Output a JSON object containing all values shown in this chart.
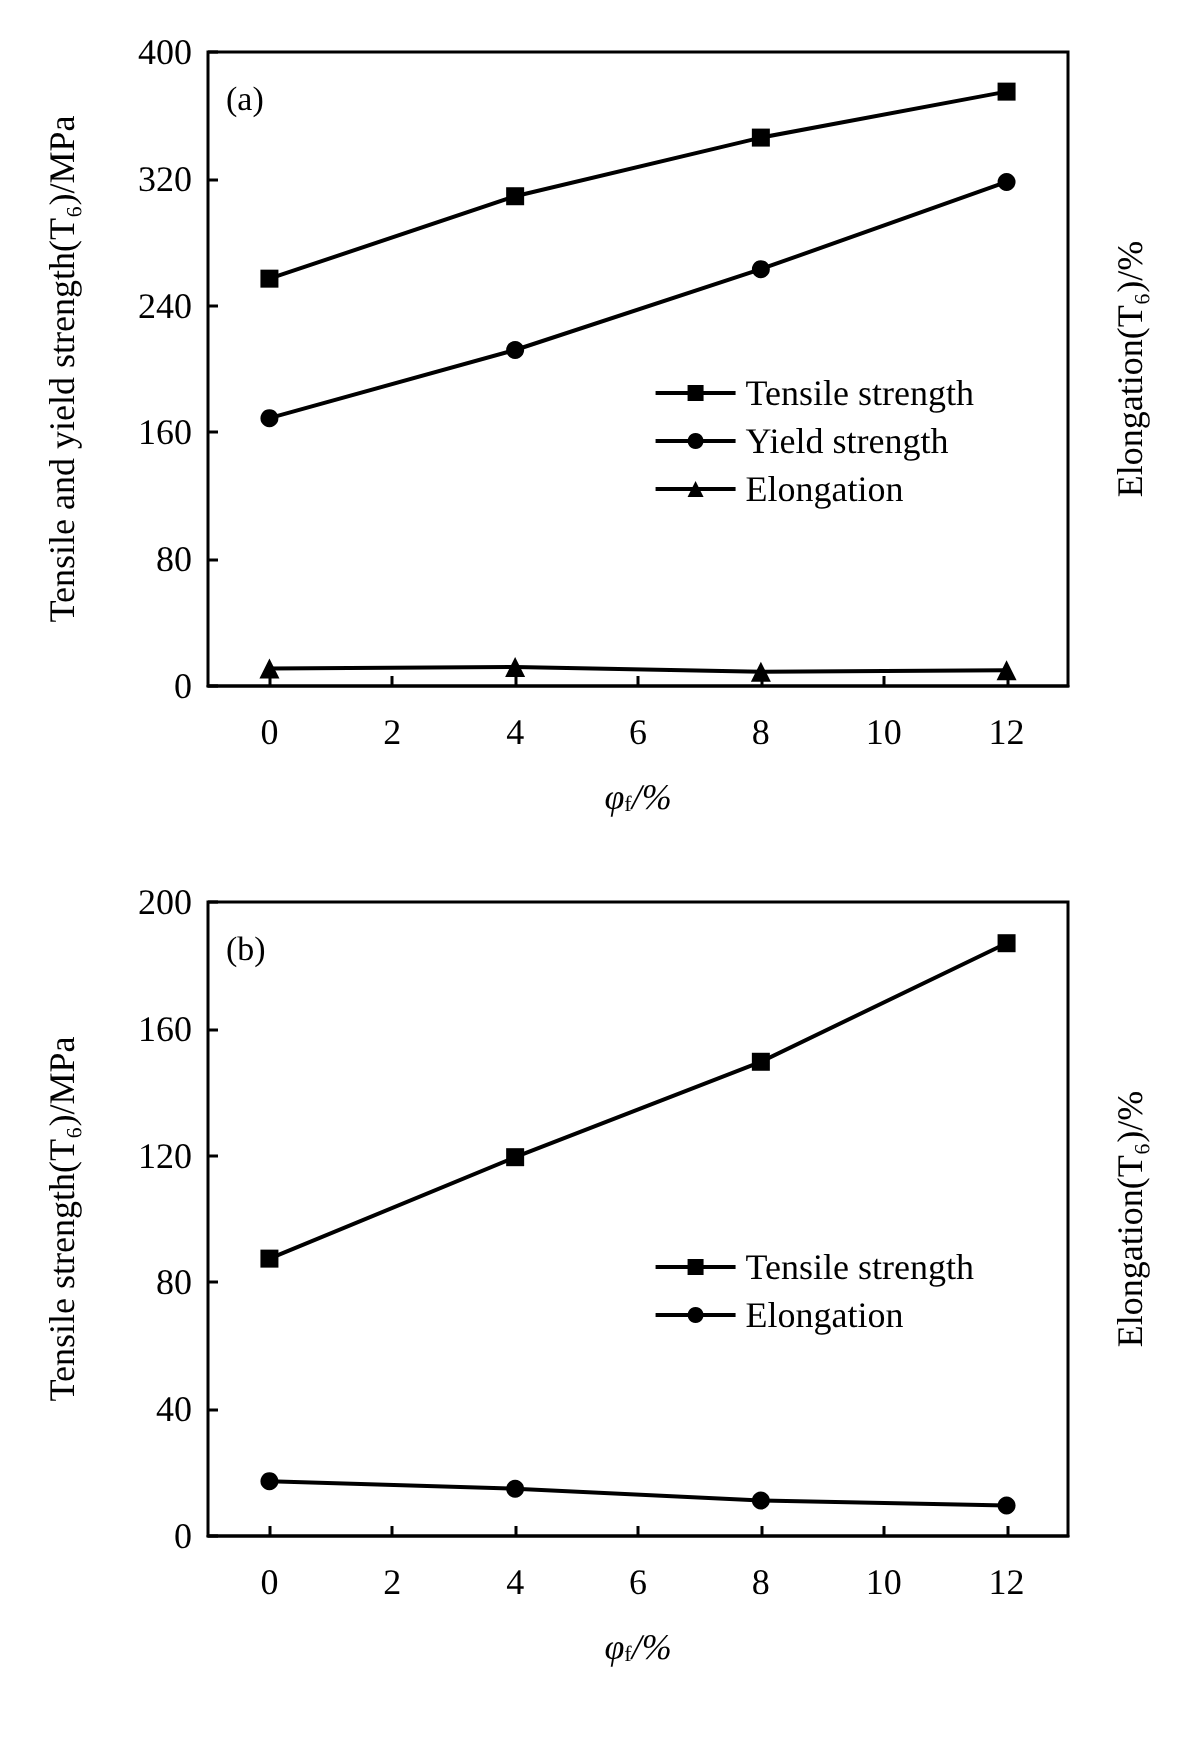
{
  "chart_data": [
    {
      "type": "line",
      "title": "(a)",
      "xlabel": "φ$_{f}$/%",
      "ylabel": "Tensile and yield strength(T₆)/MPa",
      "y2label": "Elongation(T₆)/%",
      "x": [
        0,
        4,
        8,
        12
      ],
      "xlim": [
        -1,
        13
      ],
      "xticks": [
        0,
        2,
        4,
        6,
        8,
        10,
        12
      ],
      "ylim": [
        0,
        400
      ],
      "yticks": [
        0,
        80,
        160,
        240,
        320,
        400
      ],
      "grid": false,
      "legend": "right",
      "line_style": "solid",
      "series": [
        {
          "name": "Tensile strength",
          "color": "#000000",
          "marker": "square",
          "values": [
            257,
            309,
            346,
            375
          ]
        },
        {
          "name": "Yield strength",
          "color": "#000000",
          "marker": "circle",
          "values": [
            169,
            212,
            263,
            318
          ]
        },
        {
          "name": "Elongation",
          "color": "#000000",
          "marker": "triangle",
          "values": [
            11,
            12,
            9,
            10
          ]
        }
      ]
    },
    {
      "type": "line",
      "title": "(b)",
      "xlabel": "φ$_{f}$/%",
      "ylabel": "Tensile strength(T₆)/MPa",
      "y2label": "Elongation(T₆)/%",
      "x": [
        0,
        4,
        8,
        12
      ],
      "xlim": [
        -1,
        13
      ],
      "xticks": [
        0,
        2,
        4,
        6,
        8,
        10,
        12
      ],
      "ylim": [
        0,
        200
      ],
      "yticks": [
        0,
        40,
        80,
        120,
        160,
        200
      ],
      "grid": false,
      "legend": "right",
      "line_style": "solid",
      "series": [
        {
          "name": "Tensile strength",
          "color": "#000000",
          "marker": "square",
          "values": [
            87.5,
            119.5,
            149.6,
            187
          ]
        },
        {
          "name": "Elongation",
          "color": "#000000",
          "marker": "circle",
          "values": [
            17.3,
            14.9,
            11.2,
            9.6
          ]
        }
      ]
    }
  ]
}
